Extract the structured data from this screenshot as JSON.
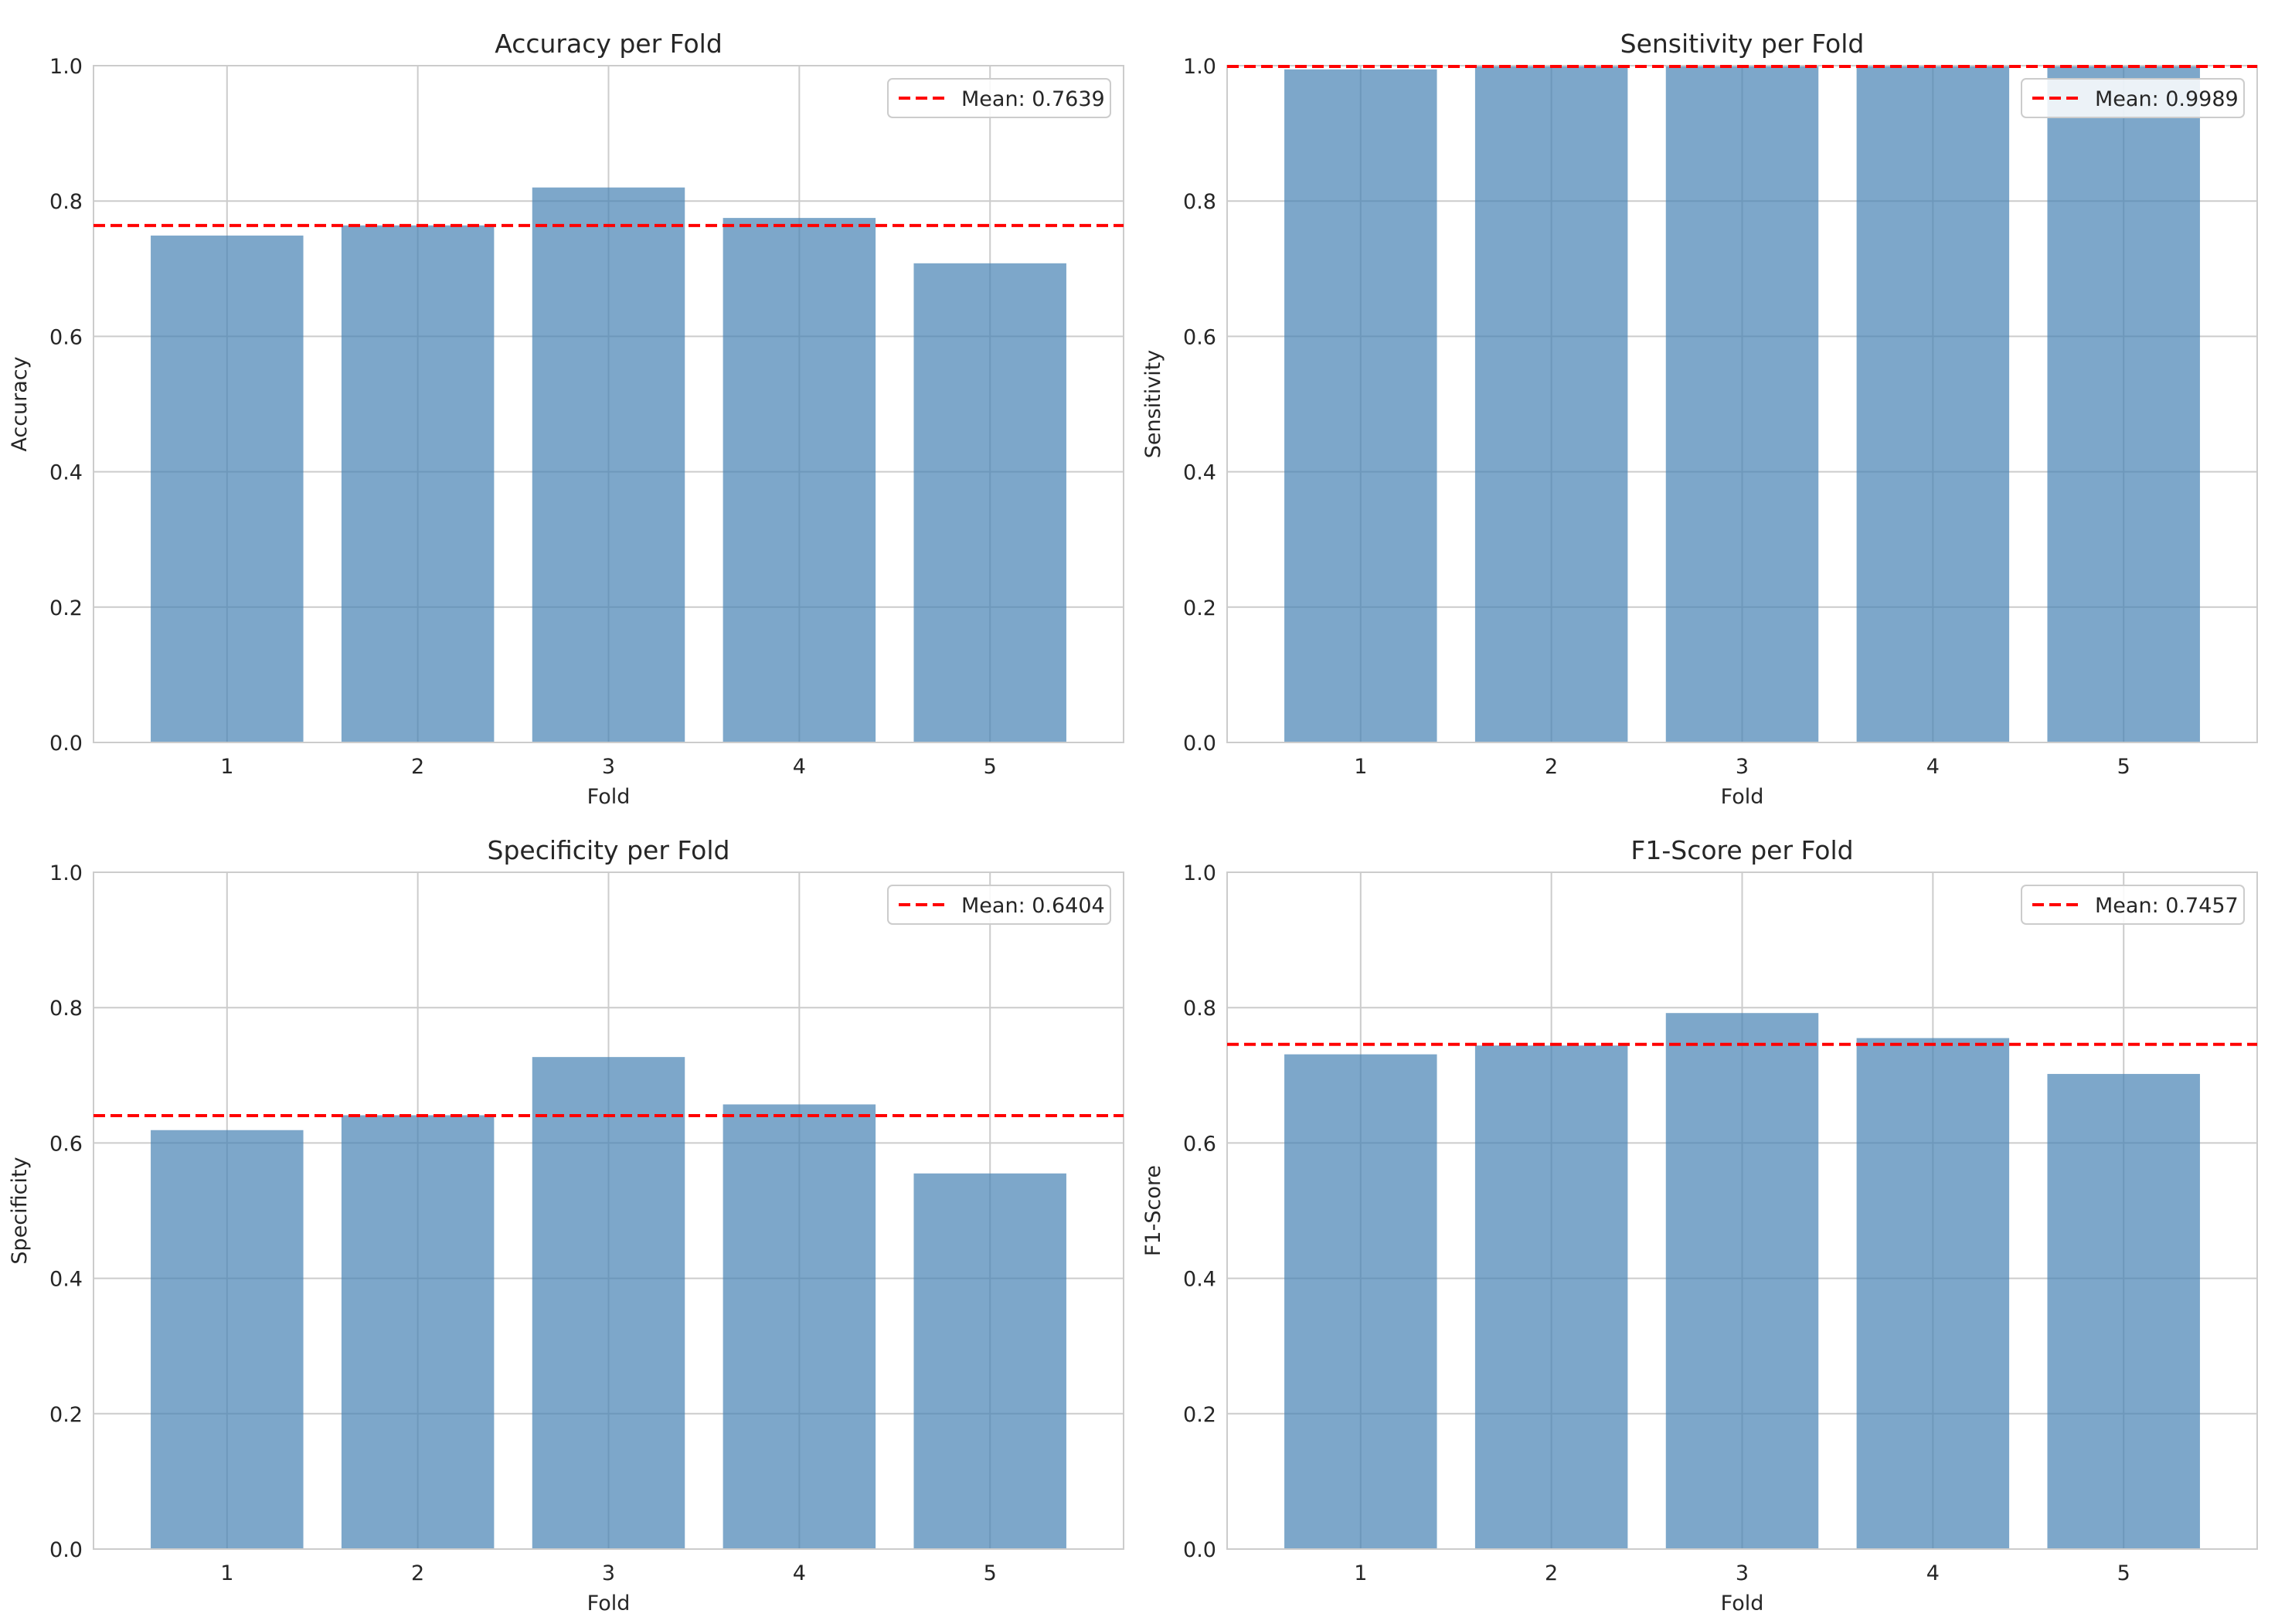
{
  "figure": {
    "bar_color": "#4682b4",
    "mean_line_color": "#ff0000",
    "grid_color": "#cccccc",
    "spine_color": "#cccccc"
  },
  "chart_data": [
    {
      "type": "bar",
      "title": "Accuracy per Fold",
      "xlabel": "Fold",
      "ylabel": "Accuracy",
      "categories": [
        "1",
        "2",
        "3",
        "4",
        "5"
      ],
      "values": [
        0.749,
        0.764,
        0.82,
        0.775,
        0.708
      ],
      "ylim": [
        0.0,
        1.0
      ],
      "yticks": [
        "0.0",
        "0.2",
        "0.4",
        "0.6",
        "0.8",
        "1.0"
      ],
      "mean": 0.7639,
      "legend": "Mean: 0.7639",
      "legend_position": "top-right",
      "grid": true
    },
    {
      "type": "bar",
      "title": "Sensitivity per Fold",
      "xlabel": "Fold",
      "ylabel": "Sensitivity",
      "categories": [
        "1",
        "2",
        "3",
        "4",
        "5"
      ],
      "values": [
        0.9945,
        1.0,
        1.0,
        1.0,
        1.0
      ],
      "ylim": [
        0.0,
        1.0
      ],
      "yticks": [
        "0.0",
        "0.2",
        "0.4",
        "0.6",
        "0.8",
        "1.0"
      ],
      "mean": 0.9989,
      "legend": "Mean: 0.9989",
      "legend_position": "top-right",
      "grid": true
    },
    {
      "type": "bar",
      "title": "Specificity per Fold",
      "xlabel": "Fold",
      "ylabel": "Specificity",
      "categories": [
        "1",
        "2",
        "3",
        "4",
        "5"
      ],
      "values": [
        0.619,
        0.641,
        0.727,
        0.657,
        0.555
      ],
      "ylim": [
        0.0,
        1.0
      ],
      "yticks": [
        "0.0",
        "0.2",
        "0.4",
        "0.6",
        "0.8",
        "1.0"
      ],
      "mean": 0.6404,
      "legend": "Mean: 0.6404",
      "legend_position": "top-right",
      "grid": true
    },
    {
      "type": "bar",
      "title": "F1-Score per Fold",
      "xlabel": "Fold",
      "ylabel": "F1-Score",
      "categories": [
        "1",
        "2",
        "3",
        "4",
        "5"
      ],
      "values": [
        0.731,
        0.744,
        0.792,
        0.755,
        0.702
      ],
      "ylim": [
        0.0,
        1.0
      ],
      "yticks": [
        "0.0",
        "0.2",
        "0.4",
        "0.6",
        "0.8",
        "1.0"
      ],
      "mean": 0.7457,
      "legend": "Mean: 0.7457",
      "legend_position": "top-right",
      "grid": true
    }
  ]
}
